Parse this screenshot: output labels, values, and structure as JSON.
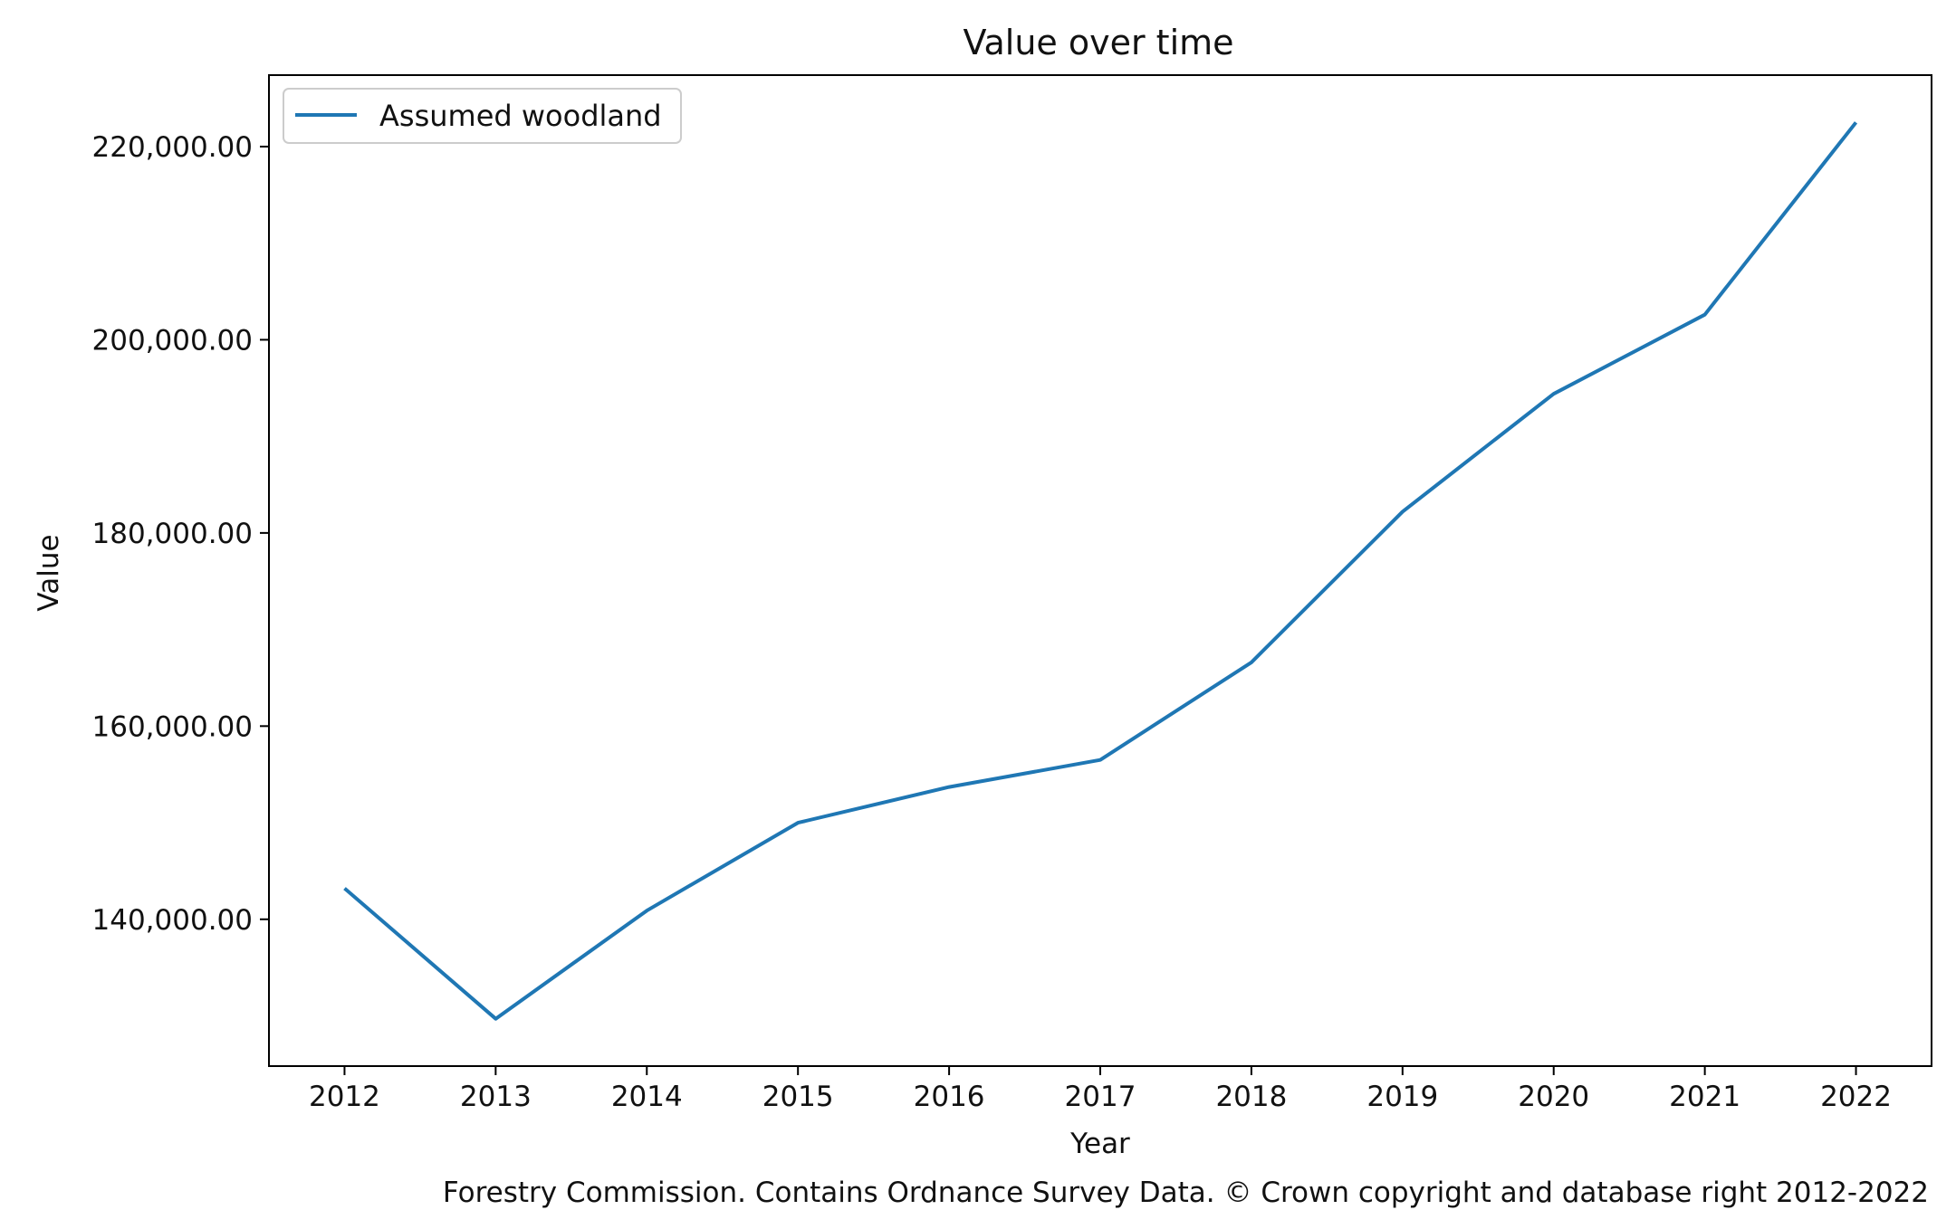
{
  "chart_data": {
    "type": "line",
    "title": "Value over time",
    "xlabel": "Year",
    "ylabel": "Value",
    "x": [
      2012,
      2013,
      2014,
      2015,
      2016,
      2017,
      2018,
      2019,
      2020,
      2021,
      2022
    ],
    "series": [
      {
        "name": "Assumed woodland",
        "color": "#1f77b4",
        "values": [
          143200,
          129700,
          140900,
          150000,
          153700,
          156500,
          166600,
          182200,
          194400,
          202600,
          222500
        ]
      }
    ],
    "xlim": [
      2011.5,
      2022.5
    ],
    "ylim": [
      124800,
      227400
    ],
    "yticks": [
      140000,
      160000,
      180000,
      200000,
      220000
    ],
    "ytick_labels": [
      "140,000.00",
      "160,000.00",
      "180,000.00",
      "200,000.00",
      "220,000.00"
    ],
    "xtick_labels": [
      "2012",
      "2013",
      "2014",
      "2015",
      "2016",
      "2017",
      "2018",
      "2019",
      "2020",
      "2021",
      "2022"
    ],
    "grid": false,
    "legend_position": "top-left",
    "footnote": "Forestry Commission. Contains Ordnance Survey Data. © Crown copyright and database right 2012-2022"
  }
}
